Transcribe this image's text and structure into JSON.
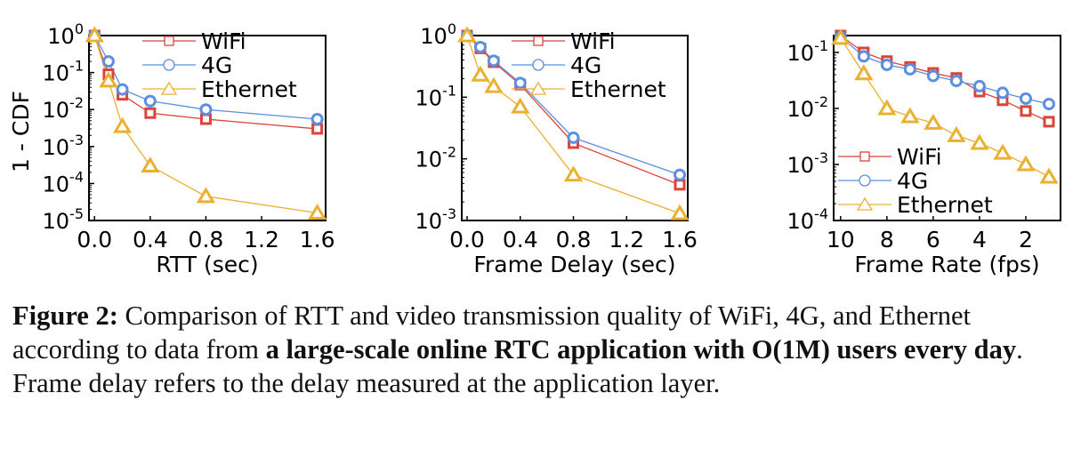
{
  "colors": {
    "WiFi": "#d9453a",
    "4G": "#5b8fe0",
    "Ethernet": "#eab030"
  },
  "legend_labels": [
    "WiFi",
    "4G",
    "Ethernet"
  ],
  "caption": {
    "label": "Figure 2:",
    "text1": " Comparison of RTT and video transmission quality of WiFi, 4G, and Ethernet according to data from ",
    "bold": "a large-scale online RTC application with O(1M) users every day",
    "text2": ". Frame delay refers to the delay measured at the application layer."
  },
  "chart_data": [
    {
      "type": "line",
      "xlabel": "RTT (sec)",
      "ylabel": "1 - CDF",
      "xlim": [
        -0.04,
        1.66
      ],
      "xticks": [
        "0.0",
        "0.4",
        "0.8",
        "1.2",
        "1.6"
      ],
      "xtick_values": [
        0,
        0.4,
        0.8,
        1.2,
        1.6
      ],
      "yscale": "log",
      "ylim": [
        1e-05,
        1
      ],
      "yticks_exp": [
        0,
        -1,
        -2,
        -3,
        -4,
        -5
      ],
      "legend_position": "top-right",
      "series": [
        {
          "name": "WiFi",
          "marker": "square",
          "x": [
            0,
            0.1,
            0.2,
            0.4,
            0.8,
            1.6
          ],
          "y": [
            1,
            0.09,
            0.025,
            0.008,
            0.0055,
            0.003
          ]
        },
        {
          "name": "4G",
          "marker": "circle",
          "x": [
            0,
            0.1,
            0.2,
            0.4,
            0.8,
            1.6
          ],
          "y": [
            1,
            0.2,
            0.035,
            0.017,
            0.01,
            0.0055
          ]
        },
        {
          "name": "Ethernet",
          "marker": "triangle",
          "x": [
            0,
            0.1,
            0.2,
            0.4,
            0.8,
            1.6
          ],
          "y": [
            1,
            0.06,
            0.0035,
            0.0003,
            4.5e-05,
            1.6e-05
          ]
        }
      ]
    },
    {
      "type": "line",
      "xlabel": "Frame Delay (sec)",
      "ylabel": "",
      "xlim": [
        -0.04,
        1.66
      ],
      "xticks": [
        "0.0",
        "0.4",
        "0.8",
        "1.2",
        "1.6"
      ],
      "xtick_values": [
        0,
        0.4,
        0.8,
        1.2,
        1.6
      ],
      "yscale": "log",
      "ylim": [
        0.001,
        1
      ],
      "yticks_exp": [
        0,
        -1,
        -2,
        -3
      ],
      "legend_position": "top-right",
      "series": [
        {
          "name": "WiFi",
          "marker": "square",
          "x": [
            0,
            0.1,
            0.2,
            0.4,
            0.8,
            1.6
          ],
          "y": [
            1,
            0.62,
            0.37,
            0.16,
            0.018,
            0.0038
          ]
        },
        {
          "name": "4G",
          "marker": "circle",
          "x": [
            0,
            0.1,
            0.2,
            0.4,
            0.8,
            1.6
          ],
          "y": [
            1,
            0.65,
            0.39,
            0.17,
            0.022,
            0.0055
          ]
        },
        {
          "name": "Ethernet",
          "marker": "triangle",
          "x": [
            0,
            0.1,
            0.2,
            0.4,
            0.8,
            1.6
          ],
          "y": [
            1,
            0.23,
            0.15,
            0.07,
            0.0055,
            0.0013
          ]
        }
      ]
    },
    {
      "type": "line",
      "xlabel": "Frame Rate (fps)",
      "ylabel": "",
      "xlim": [
        10.3,
        0.5
      ],
      "xticks": [
        "10",
        "8",
        "6",
        "4",
        "2"
      ],
      "xtick_values": [
        10,
        8,
        6,
        4,
        2
      ],
      "yscale": "log",
      "ylim": [
        0.0001,
        0.2
      ],
      "yticks_exp": [
        -1,
        -2,
        -3,
        -4
      ],
      "legend_position": "bottom-left",
      "series": [
        {
          "name": "WiFi",
          "marker": "square",
          "x": [
            10,
            9,
            8,
            7,
            6,
            5,
            4,
            3,
            2,
            1
          ],
          "y": [
            0.2,
            0.1,
            0.07,
            0.055,
            0.043,
            0.035,
            0.02,
            0.014,
            0.009,
            0.0058
          ]
        },
        {
          "name": "4G",
          "marker": "circle",
          "x": [
            10,
            9,
            8,
            7,
            6,
            5,
            4,
            3,
            2,
            1
          ],
          "y": [
            0.19,
            0.085,
            0.06,
            0.05,
            0.038,
            0.031,
            0.025,
            0.019,
            0.015,
            0.012
          ]
        },
        {
          "name": "Ethernet",
          "marker": "triangle",
          "x": [
            10,
            9,
            8,
            7,
            6,
            5,
            4,
            3,
            2,
            1
          ],
          "y": [
            0.18,
            0.042,
            0.01,
            0.0072,
            0.0055,
            0.0033,
            0.0024,
            0.0016,
            0.001,
            0.0006
          ]
        }
      ]
    }
  ]
}
